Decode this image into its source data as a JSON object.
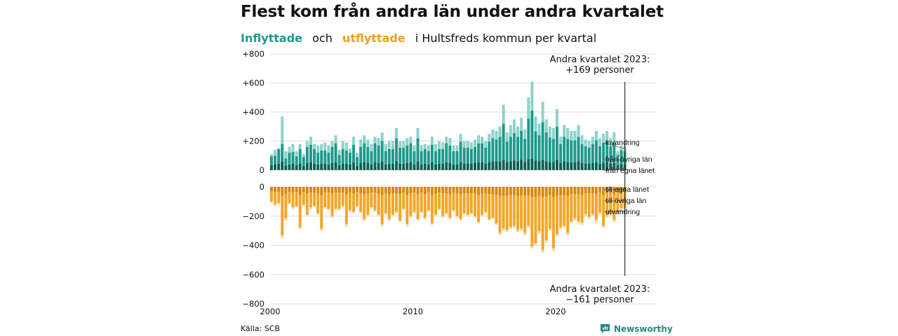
{
  "title": "Flest kom från andra län under andra kvartalet",
  "subtitle": {
    "part1": "Inflyttade",
    "part2": "och",
    "part3": "utflyttade",
    "part4": "i Hultsfreds kommun per kvartal"
  },
  "source": "Källa: SCB",
  "brand": "Newsworthy",
  "colors": {
    "in_invandring": "#8dd3ca",
    "in_ovriga": "#1e9a8c",
    "in_egna": "#0e5f55",
    "out_egna": "#d9860f",
    "out_ovriga": "#f2a628",
    "out_utvandring": "#f7d59b",
    "grid": "#dddddd",
    "brand": "#27887a"
  },
  "chart_data": {
    "type": "bar",
    "stacked": true,
    "x_range": [
      "2000",
      "2023 Q2"
    ],
    "x_ticks": [
      "2000",
      "2010",
      "2020"
    ],
    "y_ticks": [
      "+800",
      "+600",
      "+400",
      "+200",
      "0",
      "−200",
      "−400",
      "−600",
      "−800"
    ],
    "ylim": [
      -800,
      800
    ],
    "grid": true,
    "annotation_top": {
      "line1": "Andra kvartalet 2023:",
      "line2": "+169 personer"
    },
    "annotation_bottom": {
      "line1": "Andra kvartalet 2023:",
      "line2": "−161 personer"
    },
    "in_series_labels": [
      "invandring",
      "från övriga län",
      "från egna länet"
    ],
    "out_series_labels": [
      "till egna länet",
      "till övriga län",
      "utvandring"
    ],
    "inflow_total": [
      110,
      140,
      150,
      370,
      130,
      160,
      180,
      130,
      180,
      110,
      200,
      230,
      180,
      170,
      180,
      190,
      170,
      200,
      240,
      140,
      200,
      190,
      150,
      230,
      120,
      210,
      240,
      210,
      180,
      230,
      220,
      260,
      180,
      200,
      200,
      290,
      200,
      200,
      220,
      230,
      170,
      290,
      170,
      180,
      170,
      230,
      180,
      200,
      190,
      230,
      220,
      170,
      170,
      250,
      200,
      200,
      190,
      210,
      240,
      230,
      200,
      250,
      280,
      270,
      300,
      450,
      260,
      310,
      350,
      300,
      360,
      280,
      500,
      610,
      370,
      320,
      470,
      350,
      300,
      290,
      420,
      230,
      310,
      290,
      270,
      270,
      310,
      240,
      210,
      200,
      230,
      270,
      220,
      250,
      270,
      220,
      260,
      130,
      170,
      169
    ],
    "inflow_ovriga": [
      60,
      60,
      100,
      120,
      50,
      80,
      80,
      60,
      100,
      60,
      110,
      120,
      100,
      80,
      90,
      90,
      80,
      110,
      130,
      70,
      100,
      90,
      80,
      120,
      60,
      110,
      130,
      110,
      90,
      130,
      120,
      140,
      90,
      100,
      100,
      160,
      110,
      110,
      120,
      130,
      90,
      160,
      90,
      100,
      90,
      120,
      90,
      100,
      100,
      130,
      120,
      90,
      90,
      140,
      110,
      110,
      100,
      110,
      130,
      130,
      110,
      140,
      160,
      150,
      170,
      250,
      140,
      170,
      190,
      170,
      200,
      160,
      280,
      330,
      200,
      180,
      260,
      200,
      170,
      160,
      230,
      130,
      170,
      160,
      150,
      150,
      170,
      130,
      120,
      110,
      130,
      150,
      120,
      140,
      150,
      120,
      140,
      70,
      95,
      90
    ],
    "inflow_egna": [
      35,
      40,
      45,
      60,
      30,
      40,
      45,
      35,
      45,
      30,
      50,
      55,
      45,
      40,
      45,
      45,
      40,
      50,
      55,
      35,
      45,
      45,
      40,
      55,
      30,
      50,
      55,
      50,
      40,
      55,
      50,
      60,
      40,
      45,
      45,
      60,
      45,
      45,
      50,
      55,
      40,
      60,
      40,
      45,
      40,
      55,
      40,
      45,
      45,
      55,
      50,
      40,
      40,
      55,
      45,
      45,
      45,
      50,
      55,
      55,
      45,
      55,
      60,
      60,
      60,
      70,
      55,
      60,
      65,
      60,
      70,
      55,
      75,
      80,
      65,
      60,
      70,
      60,
      55,
      55,
      70,
      50,
      60,
      55,
      55,
      55,
      60,
      50,
      45,
      45,
      50,
      55,
      45,
      50,
      55,
      45,
      50,
      35,
      40,
      40
    ],
    "outflow_total": [
      -110,
      -130,
      -120,
      -350,
      -230,
      -120,
      -150,
      -140,
      -290,
      -130,
      -200,
      -150,
      -140,
      -190,
      -300,
      -150,
      -160,
      -210,
      -160,
      -160,
      -140,
      -270,
      -170,
      -180,
      -140,
      -180,
      -230,
      -200,
      -150,
      -170,
      -200,
      -270,
      -190,
      -230,
      -200,
      -180,
      -240,
      -160,
      -270,
      -210,
      -180,
      -230,
      -180,
      -220,
      -170,
      -260,
      -200,
      -160,
      -210,
      -190,
      -220,
      -170,
      -210,
      -230,
      -190,
      -200,
      -190,
      -210,
      -250,
      -200,
      -180,
      -230,
      -220,
      -260,
      -330,
      -300,
      -310,
      -290,
      -280,
      -310,
      -300,
      -330,
      -280,
      -420,
      -400,
      -320,
      -450,
      -380,
      -300,
      -440,
      -340,
      -290,
      -280,
      -330,
      -250,
      -230,
      -250,
      -260,
      -200,
      -220,
      -200,
      -240,
      -190,
      -280,
      -210,
      -200,
      -240,
      -180,
      -160,
      -161
    ],
    "outflow_egna": [
      -30,
      -35,
      -35,
      -60,
      -50,
      -35,
      -40,
      -35,
      -55,
      -35,
      -45,
      -40,
      -40,
      -45,
      -55,
      -40,
      -40,
      -45,
      -40,
      -40,
      -40,
      -50,
      -40,
      -45,
      -35,
      -45,
      -50,
      -45,
      -40,
      -40,
      -45,
      -55,
      -45,
      -50,
      -45,
      -45,
      -50,
      -40,
      -55,
      -45,
      -40,
      -50,
      -40,
      -50,
      -40,
      -55,
      -45,
      -40,
      -45,
      -45,
      -50,
      -40,
      -45,
      -50,
      -45,
      -45,
      -45,
      -45,
      -55,
      -45,
      -45,
      -50,
      -50,
      -55,
      -60,
      -60,
      -60,
      -55,
      -55,
      -60,
      -60,
      -60,
      -55,
      -70,
      -70,
      -60,
      -70,
      -65,
      -55,
      -70,
      -60,
      -55,
      -55,
      -60,
      -50,
      -50,
      -50,
      -55,
      -45,
      -45,
      -45,
      -50,
      -40,
      -55,
      -45,
      -45,
      -50,
      -40,
      -35,
      -35
    ],
    "outflow_ovriga": [
      -70,
      -85,
      -75,
      -270,
      -165,
      -75,
      -100,
      -95,
      -220,
      -85,
      -145,
      -100,
      -90,
      -135,
      -230,
      -100,
      -110,
      -155,
      -110,
      -110,
      -90,
      -205,
      -120,
      -125,
      -95,
      -125,
      -170,
      -145,
      -100,
      -120,
      -145,
      -200,
      -135,
      -170,
      -145,
      -125,
      -180,
      -110,
      -200,
      -155,
      -130,
      -170,
      -130,
      -160,
      -120,
      -195,
      -145,
      -110,
      -155,
      -135,
      -160,
      -120,
      -155,
      -170,
      -135,
      -145,
      -135,
      -155,
      -185,
      -145,
      -125,
      -170,
      -160,
      -195,
      -255,
      -225,
      -235,
      -220,
      -210,
      -235,
      -225,
      -255,
      -210,
      -335,
      -315,
      -245,
      -360,
      -300,
      -230,
      -350,
      -265,
      -220,
      -210,
      -255,
      -185,
      -165,
      -185,
      -190,
      -140,
      -160,
      -140,
      -175,
      -135,
      -210,
      -150,
      -140,
      -175,
      -125,
      -110,
      -110
    ]
  }
}
